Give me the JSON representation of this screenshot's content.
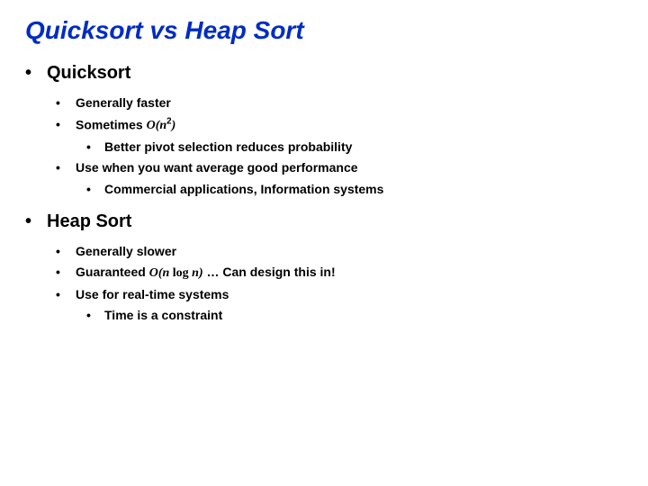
{
  "title_color": "#002cc2",
  "title": "Quicksort vs Heap Sort",
  "sections": {
    "quicksort": {
      "heading": "Quicksort",
      "items": {
        "a": "Generally faster",
        "b_pre": "Sometimes ",
        "b_o": "O(n",
        "b_sup": "2",
        "b_post": ")",
        "b_sub": "Better pivot selection reduces probability",
        "c": "Use when you want average good performance",
        "c_sub": "Commercial applications, Information systems"
      }
    },
    "heapsort": {
      "heading": "Heap Sort",
      "items": {
        "a": "Generally slower",
        "b_pre": "Guaranteed ",
        "b_o": "O(n ",
        "b_log": "log ",
        "b_n": "n)",
        "b_post": " … Can design this in!",
        "c_pre": "Use for ",
        "c_bold": "real-time systems",
        "c_sub": "Time is a constraint"
      }
    }
  }
}
